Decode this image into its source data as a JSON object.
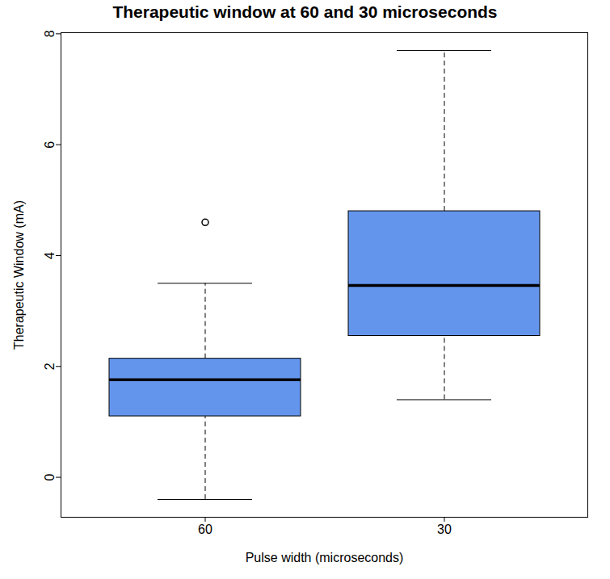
{
  "chart_data": {
    "type": "box",
    "title": "Therapeutic window at 60 and 30 microseconds",
    "x_label": "Pulse width (microseconds)",
    "y_label": "Therapeutic Window (mA)",
    "categories": [
      "60",
      "30"
    ],
    "boxes": [
      {
        "min": -0.4,
        "q1": 1.1,
        "median": 1.76,
        "q3": 2.14,
        "max": 3.5,
        "outliers": [
          4.6
        ]
      },
      {
        "min": 1.4,
        "q1": 2.55,
        "median": 3.46,
        "q3": 4.8,
        "max": 7.7,
        "outliers": []
      }
    ],
    "color": "#6495ed",
    "ylim": [
      -0.72,
      8.02
    ],
    "yticks": [
      0,
      2,
      4,
      6,
      8
    ]
  }
}
